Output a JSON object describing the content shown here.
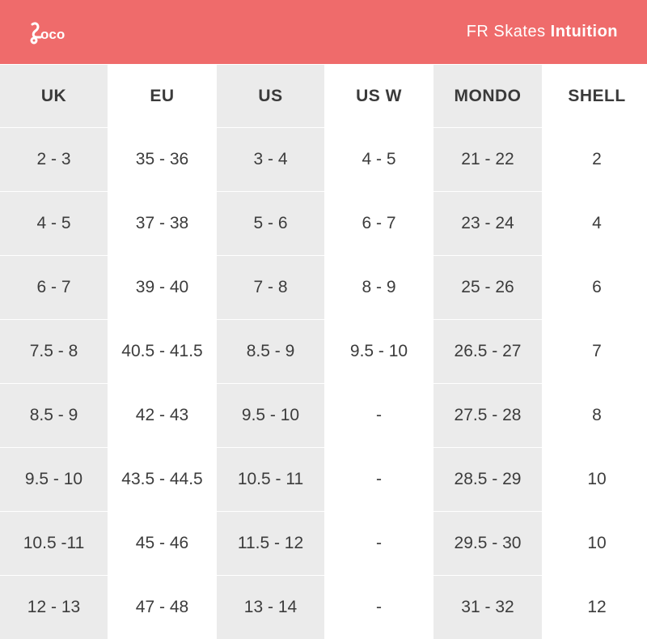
{
  "header": {
    "logo_text": "oco",
    "title_brand": "FR Skates",
    "title_model": "Intuition"
  },
  "table": {
    "columns": [
      "UK",
      "EU",
      "US",
      "US W",
      "MONDO",
      "SHELL"
    ],
    "rows": [
      [
        "2 - 3",
        "35 - 36",
        "3 - 4",
        "4 - 5",
        "21 - 22",
        "2"
      ],
      [
        "4 - 5",
        "37 - 38",
        "5 - 6",
        "6 - 7",
        "23 - 24",
        "4"
      ],
      [
        "6 - 7",
        "39 - 40",
        "7 - 8",
        "8 - 9",
        "25 - 26",
        "6"
      ],
      [
        "7.5 - 8",
        "40.5 - 41.5",
        "8.5 - 9",
        "9.5 - 10",
        "26.5 - 27",
        "7"
      ],
      [
        "8.5 - 9",
        "42 - 43",
        "9.5 - 10",
        "-",
        "27.5 - 28",
        "8"
      ],
      [
        "9.5 - 10",
        "43.5 - 44.5",
        "10.5 - 11",
        "-",
        "28.5 - 29",
        "10"
      ],
      [
        "10.5 -11",
        "45 - 46",
        "11.5 - 12",
        "-",
        "29.5 - 30",
        "10"
      ],
      [
        "12 - 13",
        "47 - 48",
        "13 - 14",
        "-",
        "31 - 32",
        "12"
      ]
    ]
  },
  "colors": {
    "banner": "#ef6b6b",
    "shaded_column": "#ebebeb",
    "text": "#3c3c3c"
  }
}
